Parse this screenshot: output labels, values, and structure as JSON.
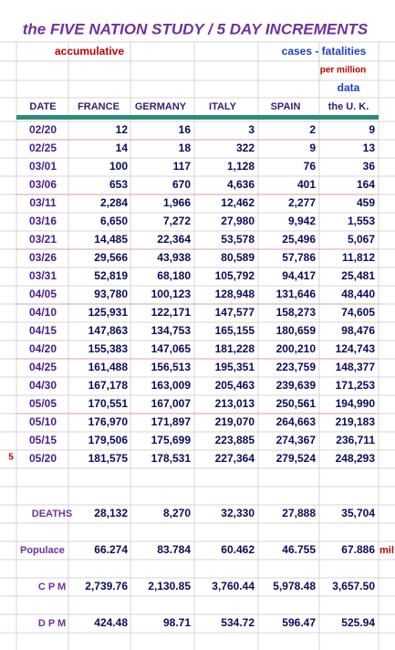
{
  "header": {
    "title": "the FIVE NATION STUDY / 5 DAY INCREMENTS",
    "left_note": "accumulative",
    "right_note": "cases - fatalities",
    "per_million": "per million",
    "data_note": "data"
  },
  "table": {
    "columns": [
      "DATE",
      "FRANCE",
      "GERMANY",
      "ITALY",
      "SPAIN",
      "the U. K."
    ],
    "rows": [
      [
        "02/20",
        "12",
        "16",
        "3",
        "2",
        "9"
      ],
      [
        "02/25",
        "14",
        "18",
        "322",
        "9",
        "13"
      ],
      [
        "03/01",
        "100",
        "117",
        "1,128",
        "76",
        "36"
      ],
      [
        "03/06",
        "653",
        "670",
        "4,636",
        "401",
        "164"
      ],
      [
        "03/11",
        "2,284",
        "1,966",
        "12,462",
        "2,277",
        "459"
      ],
      [
        "03/16",
        "6,650",
        "7,272",
        "27,980",
        "9,942",
        "1,553"
      ],
      [
        "03/21",
        "14,485",
        "22,364",
        "53,578",
        "25,496",
        "5,067"
      ],
      [
        "03/26",
        "29,566",
        "43,938",
        "80,589",
        "57,786",
        "11,812"
      ],
      [
        "03/31",
        "52,819",
        "68,180",
        "105,792",
        "94,417",
        "25,481"
      ],
      [
        "04/05",
        "93,780",
        "100,123",
        "128,948",
        "131,646",
        "48,440"
      ],
      [
        "04/10",
        "125,931",
        "122,171",
        "147,577",
        "158,273",
        "74,605"
      ],
      [
        "04/15",
        "147,863",
        "134,753",
        "165,155",
        "180,659",
        "98,476"
      ],
      [
        "04/20",
        "155,383",
        "147,065",
        "181,228",
        "200,210",
        "124,743"
      ],
      [
        "04/25",
        "161,488",
        "156,513",
        "195,351",
        "223,759",
        "148,377"
      ],
      [
        "04/30",
        "167,178",
        "163,009",
        "205,463",
        "239,639",
        "171,253"
      ],
      [
        "05/05",
        "170,551",
        "167,007",
        "213,013",
        "250,561",
        "194,990"
      ],
      [
        "05/10",
        "176,970",
        "171,897",
        "219,070",
        "264,663",
        "219,183"
      ],
      [
        "05/15",
        "179,506",
        "175,699",
        "223,885",
        "274,367",
        "236,711"
      ],
      [
        "05/20",
        "181,575",
        "178,531",
        "227,364",
        "279,524",
        "248,293"
      ]
    ],
    "row_marker": "5",
    "summary": [
      {
        "label": "DEATHS",
        "values": [
          "28,132",
          "8,270",
          "32,330",
          "27,888",
          "35,704"
        ]
      },
      {
        "label": "Populace",
        "values": [
          "66.274",
          "83.784",
          "60.462",
          "46.755",
          "67.886"
        ],
        "unit": "mil"
      },
      {
        "label": "C P M",
        "values": [
          "2,739.76",
          "2,130.85",
          "3,760.44",
          "5,978.48",
          "3,657.50"
        ]
      },
      {
        "label": "D P M",
        "values": [
          "424.48",
          "98.71",
          "534.72",
          "596.47",
          "525.94"
        ]
      }
    ]
  }
}
